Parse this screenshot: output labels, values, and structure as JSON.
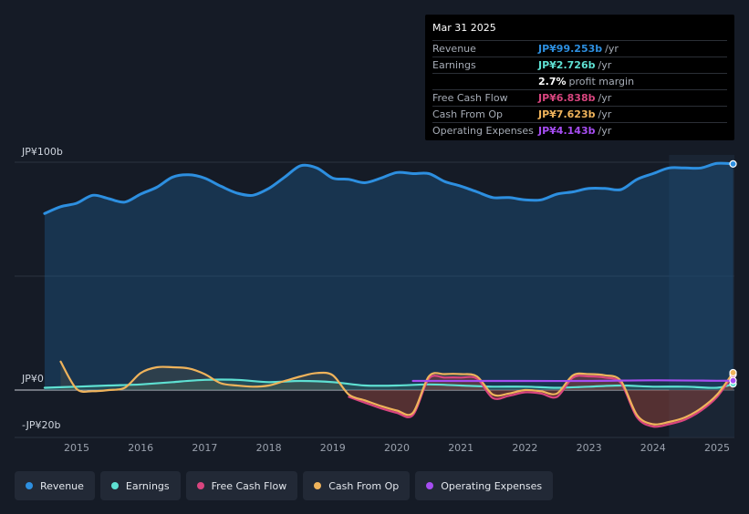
{
  "colors": {
    "revenue": "#2d8fe0",
    "earnings": "#5ee0d2",
    "free_cash_flow": "#d9457f",
    "cash_from_op": "#efb35b",
    "operating_expenses": "#a64df2"
  },
  "tooltip": {
    "date": "Mar 31 2025",
    "rows": [
      {
        "label": "Revenue",
        "value": "JP¥99.253b",
        "unit": "/yr"
      },
      {
        "label": "Earnings",
        "value": "JP¥2.726b",
        "unit": "/yr"
      },
      {
        "label": "",
        "value": "2.7%",
        "unit": "profit margin"
      },
      {
        "label": "Free Cash Flow",
        "value": "JP¥6.838b",
        "unit": "/yr"
      },
      {
        "label": "Cash From Op",
        "value": "JP¥7.623b",
        "unit": "/yr"
      },
      {
        "label": "Operating Expenses",
        "value": "JP¥4.143b",
        "unit": "/yr"
      }
    ]
  },
  "legend": [
    {
      "label": "Revenue",
      "color_key": "revenue"
    },
    {
      "label": "Earnings",
      "color_key": "earnings"
    },
    {
      "label": "Free Cash Flow",
      "color_key": "free_cash_flow"
    },
    {
      "label": "Cash From Op",
      "color_key": "cash_from_op"
    },
    {
      "label": "Operating Expenses",
      "color_key": "operating_expenses"
    }
  ],
  "chart_data": {
    "type": "line",
    "title": "",
    "xlabel": "",
    "ylabel": "",
    "unit": "JP¥ billions",
    "ylim": [
      -20,
      100
    ],
    "xlim": [
      2014.5,
      2025.25
    ],
    "y_tick_labels": [
      {
        "value": 100,
        "label": "JP¥100b"
      },
      {
        "value": 0,
        "label": "JP¥0"
      },
      {
        "value": -20,
        "label": "-JP¥20b"
      }
    ],
    "x_ticks": [
      2015,
      2016,
      2017,
      2018,
      2019,
      2020,
      2021,
      2022,
      2023,
      2024,
      2025
    ],
    "x_tick_labels": [
      "2015",
      "2016",
      "2017",
      "2018",
      "2019",
      "2020",
      "2021",
      "2022",
      "2023",
      "2024",
      "2025"
    ],
    "highlight_from": 2024.25,
    "series": [
      {
        "name": "Revenue",
        "color_key": "revenue",
        "fill": true,
        "points": [
          [
            2014.5,
            77.5
          ],
          [
            2014.75,
            80.5
          ],
          [
            2015.0,
            82
          ],
          [
            2015.25,
            85.5
          ],
          [
            2015.5,
            84
          ],
          [
            2015.75,
            82.5
          ],
          [
            2016.0,
            86
          ],
          [
            2016.25,
            89
          ],
          [
            2016.5,
            93.5
          ],
          [
            2016.75,
            94.5
          ],
          [
            2017.0,
            93
          ],
          [
            2017.25,
            89.5
          ],
          [
            2017.5,
            86.5
          ],
          [
            2017.75,
            85.5
          ],
          [
            2018.0,
            88.5
          ],
          [
            2018.25,
            93.5
          ],
          [
            2018.5,
            98.5
          ],
          [
            2018.75,
            97.5
          ],
          [
            2019.0,
            93
          ],
          [
            2019.25,
            92.5
          ],
          [
            2019.5,
            91
          ],
          [
            2019.75,
            93
          ],
          [
            2020.0,
            95.5
          ],
          [
            2020.25,
            95
          ],
          [
            2020.5,
            95
          ],
          [
            2020.75,
            91.5
          ],
          [
            2021.0,
            89.5
          ],
          [
            2021.25,
            87
          ],
          [
            2021.5,
            84.5
          ],
          [
            2021.75,
            84.5
          ],
          [
            2022.0,
            83.5
          ],
          [
            2022.25,
            83.5
          ],
          [
            2022.5,
            86
          ],
          [
            2022.75,
            87
          ],
          [
            2023.0,
            88.5
          ],
          [
            2023.25,
            88.5
          ],
          [
            2023.5,
            88
          ],
          [
            2023.75,
            92.5
          ],
          [
            2024.0,
            95
          ],
          [
            2024.25,
            97.5
          ],
          [
            2024.5,
            97.5
          ],
          [
            2024.75,
            97.5
          ],
          [
            2025.0,
            99.5
          ],
          [
            2025.25,
            99.25
          ]
        ]
      },
      {
        "name": "Earnings",
        "color_key": "earnings",
        "fill": true,
        "points": [
          [
            2014.5,
            1
          ],
          [
            2015.0,
            1.5
          ],
          [
            2015.5,
            2
          ],
          [
            2016.0,
            2.5
          ],
          [
            2016.5,
            3.5
          ],
          [
            2017.0,
            4.5
          ],
          [
            2017.5,
            4.5
          ],
          [
            2018.0,
            3.5
          ],
          [
            2018.5,
            4
          ],
          [
            2019.0,
            3.5
          ],
          [
            2019.5,
            2
          ],
          [
            2020.0,
            2
          ],
          [
            2020.5,
            2.5
          ],
          [
            2021.0,
            2
          ],
          [
            2021.5,
            1.5
          ],
          [
            2022.0,
            1.5
          ],
          [
            2022.5,
            1
          ],
          [
            2023.0,
            1.5
          ],
          [
            2023.5,
            2
          ],
          [
            2024.0,
            1.5
          ],
          [
            2024.5,
            1.5
          ],
          [
            2025.0,
            1
          ],
          [
            2025.25,
            2.73
          ]
        ]
      },
      {
        "name": "Free Cash Flow",
        "color_key": "free_cash_flow",
        "fill": true,
        "points": [
          [
            2019.25,
            -3
          ],
          [
            2019.5,
            -5.5
          ],
          [
            2019.75,
            -8
          ],
          [
            2020.0,
            -10
          ],
          [
            2020.25,
            -11
          ],
          [
            2020.5,
            5
          ],
          [
            2020.75,
            5.5
          ],
          [
            2021.0,
            5.5
          ],
          [
            2021.25,
            5
          ],
          [
            2021.5,
            -3.5
          ],
          [
            2021.75,
            -2.5
          ],
          [
            2022.0,
            -1
          ],
          [
            2022.25,
            -1.5
          ],
          [
            2022.5,
            -3
          ],
          [
            2022.75,
            5.5
          ],
          [
            2023.0,
            6
          ],
          [
            2023.25,
            5.5
          ],
          [
            2023.5,
            3
          ],
          [
            2023.75,
            -12
          ],
          [
            2024.0,
            -16
          ],
          [
            2024.25,
            -15
          ],
          [
            2024.5,
            -13
          ],
          [
            2024.75,
            -9
          ],
          [
            2025.0,
            -3
          ],
          [
            2025.25,
            6.84
          ]
        ]
      },
      {
        "name": "Cash From Op",
        "color_key": "cash_from_op",
        "fill": true,
        "points": [
          [
            2014.75,
            12.5
          ],
          [
            2015.0,
            0.5
          ],
          [
            2015.25,
            -0.5
          ],
          [
            2015.5,
            0
          ],
          [
            2015.75,
            1
          ],
          [
            2016.0,
            7.5
          ],
          [
            2016.25,
            10
          ],
          [
            2016.5,
            10
          ],
          [
            2016.75,
            9.5
          ],
          [
            2017.0,
            7
          ],
          [
            2017.25,
            3
          ],
          [
            2017.5,
            2
          ],
          [
            2017.75,
            1.5
          ],
          [
            2018.0,
            2
          ],
          [
            2018.25,
            4
          ],
          [
            2018.5,
            6
          ],
          [
            2018.75,
            7.5
          ],
          [
            2019.0,
            6.5
          ],
          [
            2019.25,
            -2
          ],
          [
            2019.5,
            -4.5
          ],
          [
            2019.75,
            -7
          ],
          [
            2020.0,
            -9
          ],
          [
            2020.25,
            -10
          ],
          [
            2020.5,
            6
          ],
          [
            2020.75,
            7
          ],
          [
            2021.0,
            7
          ],
          [
            2021.25,
            6
          ],
          [
            2021.5,
            -2
          ],
          [
            2021.75,
            -1.5
          ],
          [
            2022.0,
            0
          ],
          [
            2022.25,
            -0.5
          ],
          [
            2022.5,
            -1.5
          ],
          [
            2022.75,
            6.5
          ],
          [
            2023.0,
            7
          ],
          [
            2023.25,
            6.5
          ],
          [
            2023.5,
            4
          ],
          [
            2023.75,
            -11
          ],
          [
            2024.0,
            -15
          ],
          [
            2024.25,
            -14
          ],
          [
            2024.5,
            -12
          ],
          [
            2024.75,
            -8
          ],
          [
            2025.0,
            -2
          ],
          [
            2025.25,
            7.62
          ]
        ]
      },
      {
        "name": "Operating Expenses",
        "color_key": "operating_expenses",
        "fill": false,
        "points": [
          [
            2020.25,
            4
          ],
          [
            2021.0,
            4
          ],
          [
            2022.0,
            4
          ],
          [
            2023.0,
            4
          ],
          [
            2024.0,
            4.3
          ],
          [
            2025.0,
            4.1
          ],
          [
            2025.25,
            4.14
          ]
        ]
      }
    ]
  }
}
